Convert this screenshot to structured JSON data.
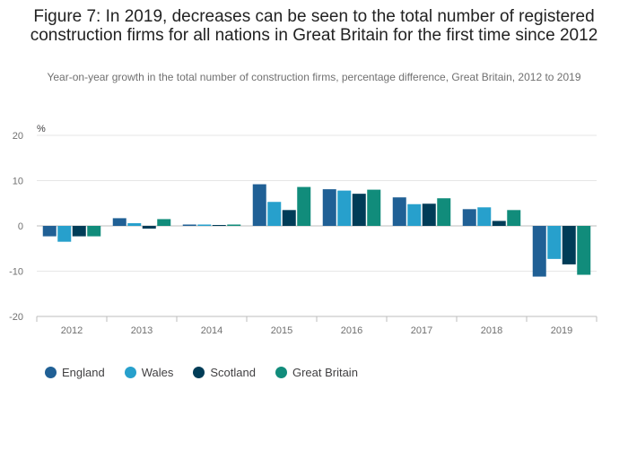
{
  "chart_data": {
    "type": "bar",
    "title": "Figure 7: In 2019, decreases can be seen to the total number of registered construction firms for all nations in Great Britain for the first time since 2012",
    "subtitle": "Year-on-year growth in the total number of construction firms, percentage difference, Great Britain, 2012 to 2019",
    "ylabel": "%",
    "xlabel": "",
    "ylim": [
      -20,
      20
    ],
    "yticks": [
      20,
      10,
      0,
      -10,
      -20
    ],
    "grid": true,
    "legend_position": "bottom-left",
    "categories": [
      "2012",
      "2013",
      "2014",
      "2015",
      "2016",
      "2017",
      "2018",
      "2019"
    ],
    "series": [
      {
        "name": "England",
        "color": "#206095",
        "values": [
          -2.3,
          1.7,
          0.3,
          9.2,
          8.1,
          6.3,
          3.7,
          -11.2
        ]
      },
      {
        "name": "Wales",
        "color": "#27a0cc",
        "values": [
          -3.5,
          0.6,
          0.3,
          5.3,
          7.8,
          4.8,
          4.1,
          -7.3
        ]
      },
      {
        "name": "Scotland",
        "color": "#003c57",
        "values": [
          -2.3,
          -0.6,
          0.2,
          3.5,
          7.1,
          4.9,
          1.1,
          -8.5
        ]
      },
      {
        "name": "Great Britain",
        "color": "#118c7b",
        "values": [
          -2.3,
          1.5,
          0.3,
          8.6,
          8.0,
          6.1,
          3.5,
          -10.8
        ]
      }
    ]
  }
}
